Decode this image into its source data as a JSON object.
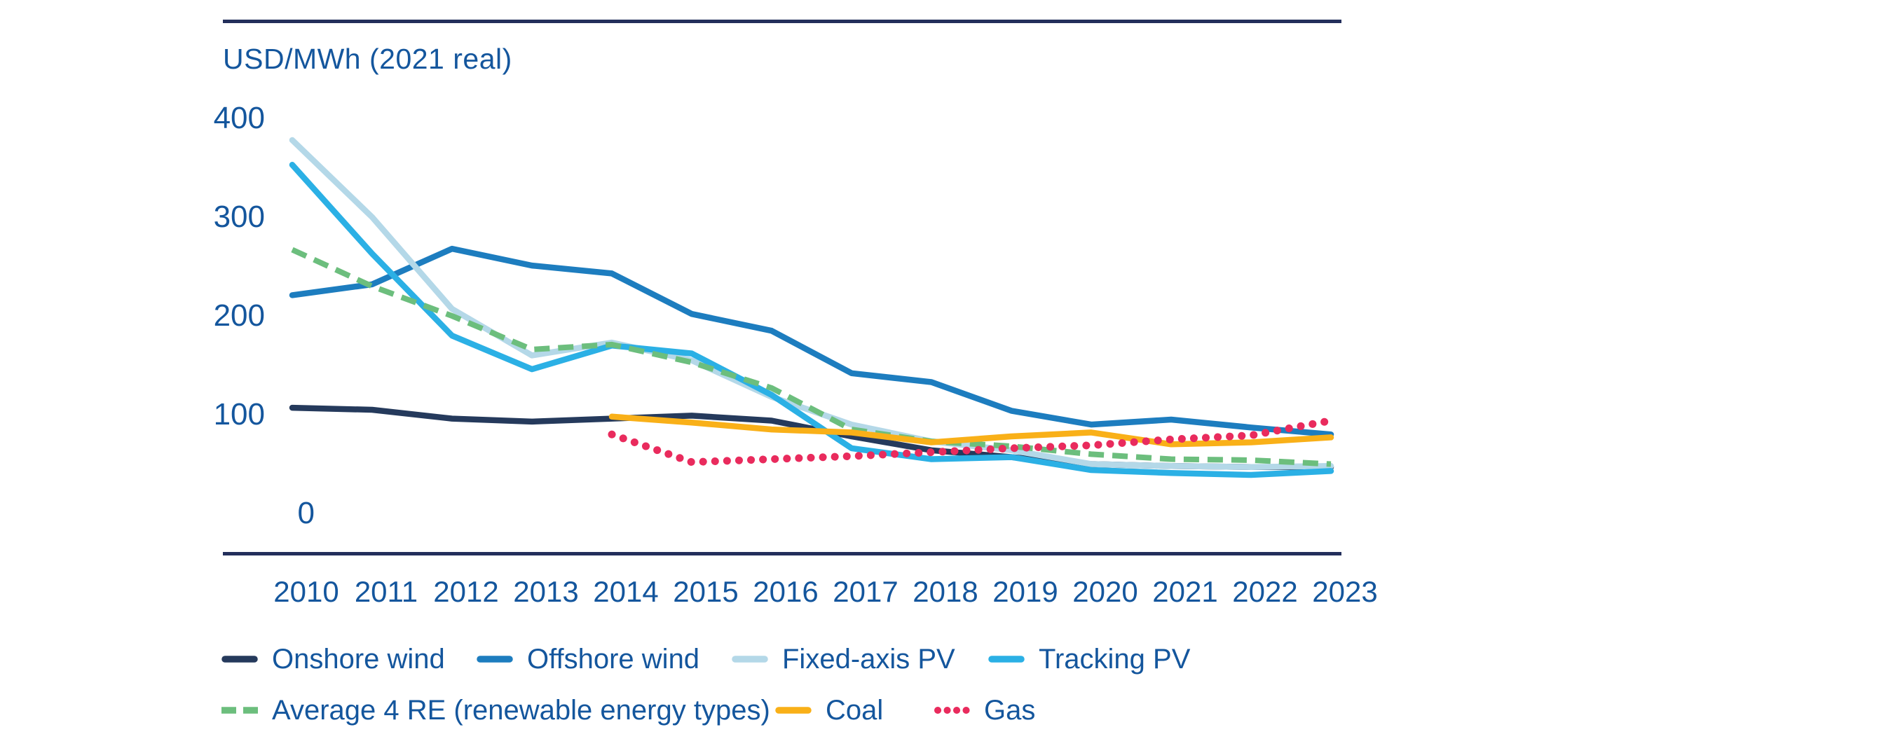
{
  "chart": {
    "title": "USD/MWh (2021 real)",
    "colors": {
      "text": "#14569D",
      "rule": "#232F5B",
      "background": "#FFFFFF"
    },
    "y_axis": {
      "tick_labels": [
        "400",
        "300",
        "200",
        "100",
        "0"
      ]
    },
    "x_axis": {
      "tick_labels": [
        "2010",
        "2011",
        "2012",
        "2013",
        "2014",
        "2015",
        "2016",
        "2017",
        "2018",
        "2019",
        "2020",
        "2021",
        "2022",
        "2023"
      ]
    }
  },
  "chart_data": {
    "type": "line",
    "title": "USD/MWh (2021 real)",
    "x": [
      2010,
      2011,
      2012,
      2013,
      2014,
      2015,
      2016,
      2017,
      2018,
      2019,
      2020,
      2021,
      2022,
      2023
    ],
    "ylabel": "USD/MWh (2021 real)",
    "ylim": [
      0,
      400
    ],
    "y_ticks": [
      0,
      100,
      200,
      300,
      400
    ],
    "grid": false,
    "legend_position": "bottom",
    "series": [
      {
        "name": "Onshore wind",
        "color": "#253A5C",
        "style": "solid",
        "values": [
          107,
          105,
          96,
          93,
          96,
          99,
          94,
          78,
          64,
          57,
          50,
          48,
          47,
          47
        ]
      },
      {
        "name": "Offshore wind",
        "color": "#1D7DBF",
        "style": "solid",
        "values": [
          221,
          232,
          268,
          251,
          243,
          202,
          185,
          142,
          133,
          104,
          90,
          95,
          87,
          80
        ]
      },
      {
        "name": "Fixed-axis PV",
        "color": "#B4D8E8",
        "style": "solid",
        "values": [
          378,
          300,
          207,
          160,
          173,
          155,
          118,
          90,
          73,
          64,
          50,
          48,
          47,
          48
        ]
      },
      {
        "name": "Tracking PV",
        "color": "#2BB0E5",
        "style": "solid",
        "values": [
          353,
          263,
          180,
          146,
          170,
          162,
          120,
          66,
          55,
          57,
          44,
          41,
          39,
          43
        ]
      },
      {
        "name": "Average 4 RE (renewable energy types)",
        "color": "#6CBE7D",
        "style": "dashed",
        "values": [
          267,
          230,
          200,
          166,
          171,
          153,
          127,
          85,
          73,
          68,
          60,
          55,
          54,
          50
        ]
      },
      {
        "name": "Coal",
        "color": "#F9B018",
        "style": "solid",
        "values": [
          null,
          null,
          null,
          null,
          98,
          92,
          85,
          82,
          72,
          78,
          82,
          70,
          72,
          77
        ]
      },
      {
        "name": "Gas",
        "color": "#E92B5D",
        "style": "dotted",
        "values": [
          null,
          null,
          null,
          null,
          80,
          52,
          55,
          58,
          62,
          66,
          69,
          75,
          79,
          94
        ]
      }
    ]
  },
  "legend": {
    "rows": [
      {
        "items": [
          0,
          1,
          2,
          3
        ]
      },
      {
        "items": [
          4,
          5,
          6
        ]
      }
    ]
  }
}
